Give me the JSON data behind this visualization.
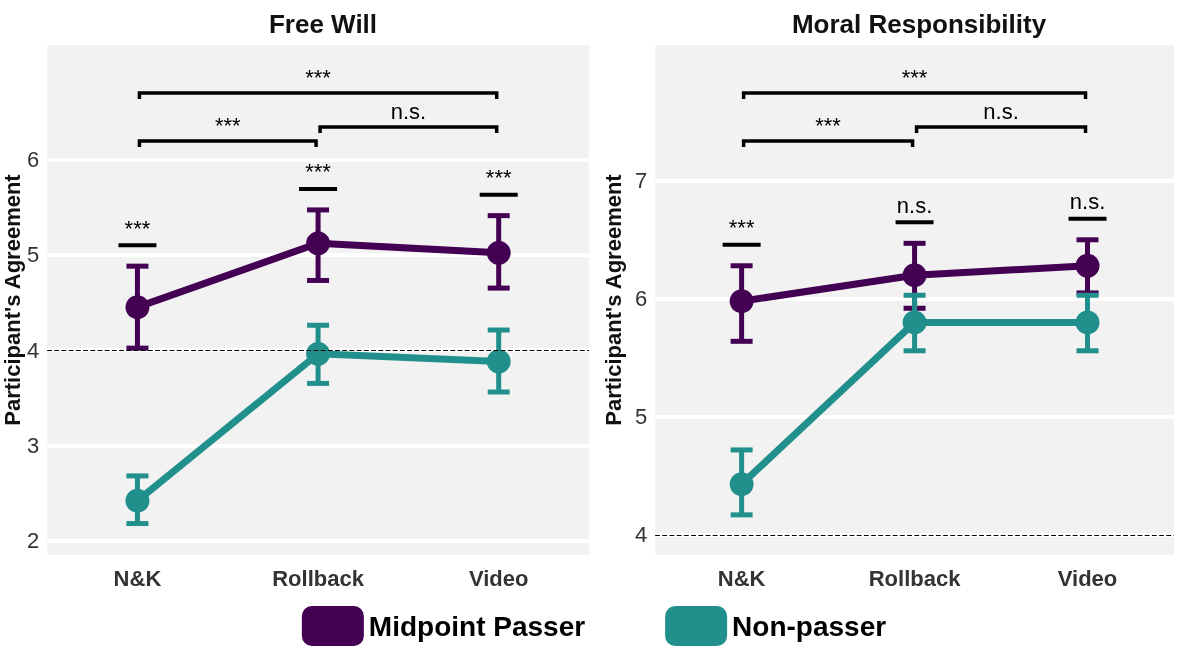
{
  "chart_data": [
    {
      "type": "line",
      "title": "Free Will",
      "ylabel": "Participant's Agreement",
      "categories": [
        "N&K",
        "Rollback",
        "Video"
      ],
      "ylim": [
        1.85,
        7.2
      ],
      "yticks": [
        2,
        3,
        4,
        5,
        6
      ],
      "grid": "y",
      "legend": "bottom",
      "marker": "circle",
      "line_style": "solid",
      "series": [
        {
          "name": "Midpoint Passer",
          "color": "#440154",
          "values": [
            4.45,
            5.12,
            5.02
          ],
          "errors": [
            [
              4.02,
              4.88
            ],
            [
              4.73,
              5.47
            ],
            [
              4.65,
              5.41
            ]
          ]
        },
        {
          "name": "Non-passer",
          "color": "#21908c",
          "values": [
            2.42,
            3.96,
            3.88
          ],
          "errors": [
            [
              2.18,
              2.68
            ],
            [
              3.65,
              4.26
            ],
            [
              3.56,
              4.21
            ]
          ]
        }
      ],
      "ref_lines": [
        {
          "axis": "y",
          "value": 4,
          "color": "#000000",
          "line_style": "dashed"
        }
      ],
      "annotations": [
        "***",
        "***",
        "***",
        "***",
        "***",
        "n.s."
      ]
    },
    {
      "type": "line",
      "title": "Moral Responsibility",
      "ylabel": "Participant's Agreement",
      "categories": [
        "N&K",
        "Rollback",
        "Video"
      ],
      "ylim": [
        3.83,
        8.15
      ],
      "yticks": [
        4,
        5,
        6,
        7
      ],
      "grid": "y",
      "marker": "circle",
      "line_style": "solid",
      "series": [
        {
          "color": "#440154",
          "values": [
            5.98,
            6.2,
            6.28
          ],
          "errors": [
            [
              5.64,
              6.28
            ],
            [
              5.92,
              6.47
            ],
            [
              6.05,
              6.5
            ]
          ]
        },
        {
          "color": "#21908c",
          "values": [
            4.43,
            5.8,
            5.8
          ],
          "errors": [
            [
              4.17,
              4.72
            ],
            [
              5.56,
              6.03
            ],
            [
              5.56,
              6.03
            ]
          ]
        }
      ],
      "ref_lines": [
        {
          "axis": "y",
          "value": 4,
          "color": "#000000",
          "line_style": "dashed"
        }
      ],
      "annotations": [
        "***",
        "n.s.",
        "n.s.",
        "***",
        "***",
        "n.s."
      ]
    }
  ]
}
